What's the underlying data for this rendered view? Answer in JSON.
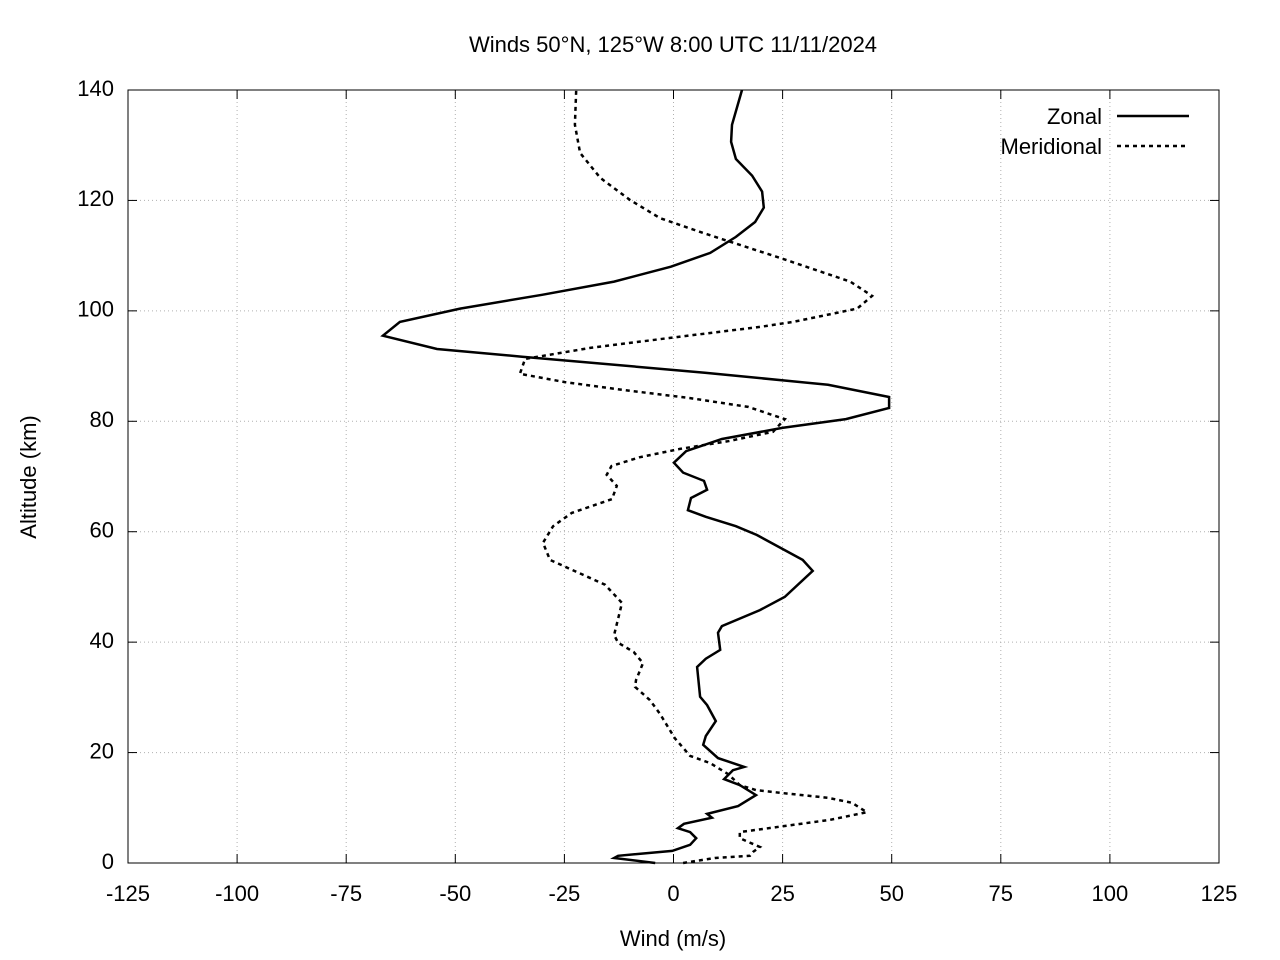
{
  "chart_data": {
    "type": "line",
    "title": "Winds 50°N, 125°W 8:00 UTC 11/11/2024",
    "x_label": "Wind (m/s)",
    "y_label": "Altitude (km)",
    "xlim": [
      -125,
      125
    ],
    "xticks": [
      -125,
      -100,
      -75,
      -50,
      -25,
      0,
      25,
      50,
      75,
      100,
      125
    ],
    "ylim": [
      0,
      140
    ],
    "yticks": [
      0,
      20,
      40,
      60,
      80,
      100,
      120,
      140
    ],
    "grid": true,
    "legend": "upper right",
    "series": [
      {
        "name": "Zonal",
        "color": "#000000",
        "dash": "solid",
        "x": [
          -4.2,
          -13.6,
          -12.7,
          -0.3,
          3.8,
          5.2,
          3.8,
          1.0,
          2.4,
          8.8,
          7.7,
          14.8,
          18.9,
          15.2,
          11.6,
          13.6,
          16.2,
          10.2,
          6.8,
          7.4,
          9.7,
          7.7,
          6.1,
          5.4,
          7.4,
          10.7,
          10.2,
          11.1,
          19.8,
          25.5,
          31.9,
          29.6,
          19.1,
          14.3,
          7.4,
          3.3,
          4.0,
          7.7,
          7.0,
          2.2,
          0.1,
          2.9,
          11.1,
          24.9,
          39.5,
          49.4,
          49.4,
          35.4,
          7.2,
          -34.7,
          -54.2,
          -66.6,
          -62.7,
          -48.9,
          -30.1,
          -13.6,
          -0.6,
          8.4,
          14.3,
          18.7,
          20.7,
          20.3,
          18.0,
          14.3,
          13.2,
          13.4,
          15.7
        ],
        "y": [
          0,
          0.9,
          1.3,
          2.2,
          3.3,
          4.5,
          5.6,
          6.3,
          7.1,
          8.2,
          8.9,
          10.3,
          12.3,
          14.1,
          15.2,
          16.8,
          17.4,
          19.0,
          21.4,
          23.0,
          25.7,
          28.6,
          30.1,
          35.5,
          37.0,
          38.6,
          41.7,
          42.9,
          45.8,
          48.2,
          52.9,
          54.9,
          59.4,
          61.0,
          62.7,
          63.9,
          66.1,
          67.6,
          69.2,
          70.7,
          72.5,
          74.6,
          76.8,
          78.8,
          80.4,
          82.4,
          84.4,
          86.6,
          88.8,
          91.7,
          93.1,
          95.5,
          98.0,
          100.4,
          102.9,
          105.3,
          108.0,
          110.5,
          113.4,
          116.1,
          118.7,
          121.6,
          124.5,
          127.5,
          130.6,
          133.7,
          140
        ]
      },
      {
        "name": "Meridional",
        "color": "#000000",
        "dash": "dashed",
        "x": [
          2.2,
          9.5,
          17.5,
          18.2,
          19.8,
          15.2,
          15.2,
          35.8,
          44.3,
          40.9,
          35.4,
          24.6,
          18.9,
          15.2,
          12.5,
          8.4,
          3.8,
          0.3,
          -3.1,
          -5.4,
          -8.8,
          -8.6,
          -7.0,
          -9.1,
          -12.7,
          -13.6,
          -11.8,
          -15.7,
          -28.3,
          -29.9,
          -27.6,
          -23.3,
          -14.1,
          -13.0,
          -15.3,
          -14.2,
          -7.7,
          1.5,
          12.5,
          22.8,
          25.5,
          17.1,
          3.8,
          -11.8,
          -24.9,
          -35.2,
          -34.0,
          -19.1,
          -0.8,
          19.8,
          27.4,
          42.1,
          45.5,
          40.5,
          24.4,
          6.8,
          -3.1,
          -10.0,
          -16.8,
          -21.4,
          -22.6,
          -22.3
        ],
        "y": [
          0,
          0.9,
          1.3,
          2.0,
          2.9,
          4.5,
          5.6,
          7.8,
          9.2,
          10.9,
          11.8,
          12.7,
          13.2,
          14.1,
          16.1,
          18.1,
          19.4,
          22.6,
          27.0,
          29.5,
          31.9,
          33.1,
          36.2,
          38.2,
          39.9,
          41.3,
          47.1,
          50.4,
          54.9,
          58.0,
          61.0,
          63.4,
          65.9,
          68.3,
          70.3,
          71.9,
          73.5,
          75.0,
          76.4,
          78.1,
          80.4,
          82.6,
          84.2,
          85.7,
          87.1,
          88.6,
          91.3,
          93.3,
          95.1,
          97.1,
          98.0,
          100.4,
          102.7,
          105.3,
          109.6,
          114.1,
          116.8,
          120.1,
          124.1,
          128.6,
          133.7,
          140
        ]
      }
    ]
  }
}
